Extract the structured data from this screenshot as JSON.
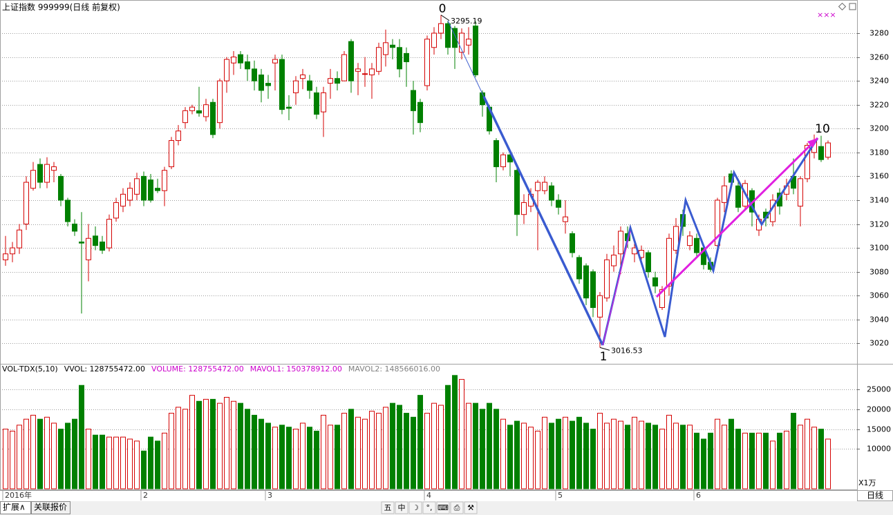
{
  "ui": {
    "header": "上证指数 999999(日线 前复权)",
    "tabs": [
      "扩展∧",
      "关联报价"
    ],
    "toolbar": [
      "五",
      "中",
      "☽",
      "°,",
      "⌨",
      "⎙",
      "⚒"
    ],
    "period": "日线",
    "unit": "X1万",
    "marks": "×××",
    "indicator": [
      {
        "text": "VOL-TDX(5,10)",
        "color": "#000000"
      },
      {
        "text": "VVOL: 128755472.00",
        "color": "#000000"
      },
      {
        "text": "VOLUME: 128755472.00",
        "color": "#cc00cc"
      },
      {
        "text": "MAVOL1: 150378912.00",
        "color": "#cc00cc"
      },
      {
        "text": "MAVOL2: 148566016.00",
        "color": "#808080"
      }
    ]
  },
  "chart_data": [
    {
      "type": "candlestick",
      "title": "上证指数 999999(日线 前复权)",
      "up_color": "#d40000",
      "down_color": "#008000",
      "categories": [
        "2016年",
        null,
        null,
        null,
        null,
        null,
        null,
        null,
        null,
        null,
        null,
        null,
        null,
        null,
        null,
        null,
        null,
        null,
        null,
        null,
        "2",
        null,
        null,
        null,
        null,
        null,
        null,
        null,
        null,
        null,
        null,
        null,
        null,
        null,
        null,
        null,
        null,
        null,
        "3",
        null,
        null,
        null,
        null,
        null,
        null,
        null,
        null,
        null,
        null,
        null,
        null,
        null,
        null,
        null,
        null,
        null,
        null,
        null,
        null,
        null,
        null,
        "4",
        null,
        null,
        null,
        null,
        null,
        null,
        null,
        null,
        null,
        null,
        null,
        null,
        null,
        null,
        null,
        null,
        null,
        null,
        "5",
        null,
        null,
        null,
        null,
        null,
        null,
        null,
        null,
        null,
        null,
        null,
        null,
        null,
        null,
        null,
        null,
        null,
        null,
        null,
        "6",
        null,
        null,
        null,
        null,
        null,
        null,
        null,
        null,
        null,
        null,
        null,
        null,
        null,
        null,
        null,
        null,
        null,
        null,
        null
      ],
      "open": [
        3090,
        3095,
        3100,
        3120,
        3150,
        3170,
        3155,
        3165,
        3160,
        3140,
        3120,
        3105,
        3090,
        3110,
        3105,
        3100,
        3125,
        3135,
        3140,
        3145,
        3160,
        3157,
        3150,
        3148,
        3168,
        3190,
        3205,
        3215,
        3215,
        3210,
        3222,
        3205,
        3240,
        3255,
        3262,
        3256,
        3250,
        3245,
        3238,
        3255,
        3258,
        3218,
        3230,
        3242,
        3240,
        3230,
        3214,
        3238,
        3242,
        3240,
        3273,
        3248,
        3246,
        3245,
        3248,
        3262,
        3270,
        3268,
        3263,
        3232,
        3222,
        3236,
        3268,
        3280,
        3288,
        3284,
        3264,
        3270,
        3286,
        3230,
        3218,
        3190,
        3168,
        3178,
        3165,
        3128,
        3135,
        3148,
        3148,
        3152,
        3140,
        3122,
        3112,
        3092,
        3085,
        3080,
        3042,
        3058,
        3085,
        3095,
        3112,
        3095,
        3092,
        3096,
        3075,
        3050,
        3068,
        3098,
        3128,
        3102,
        3108,
        3100,
        3088,
        3102,
        3138,
        3162,
        3152,
        3135,
        3148,
        3115,
        3130,
        3122,
        3146,
        3145,
        3160,
        3135,
        3158,
        3180,
        3185,
        3176
      ],
      "high": [
        3110,
        3105,
        3120,
        3160,
        3172,
        3175,
        3176,
        3172,
        3162,
        3142,
        3124,
        3130,
        3120,
        3118,
        3110,
        3128,
        3142,
        3150,
        3155,
        3163,
        3164,
        3162,
        3158,
        3168,
        3193,
        3203,
        3218,
        3220,
        3235,
        3225,
        3225,
        3242,
        3260,
        3265,
        3265,
        3262,
        3257,
        3250,
        3245,
        3262,
        3262,
        3228,
        3244,
        3250,
        3245,
        3235,
        3235,
        3250,
        3248,
        3265,
        3275,
        3255,
        3260,
        3255,
        3272,
        3283,
        3275,
        3275,
        3268,
        3240,
        3225,
        3278,
        3285,
        3295.19,
        3290,
        3286,
        3284,
        3285,
        3290,
        3232,
        3220,
        3192,
        3180,
        3180,
        3168,
        3145,
        3150,
        3157,
        3160,
        3155,
        3145,
        3140,
        3114,
        3094,
        3087,
        3082,
        3063,
        3095,
        3102,
        3118,
        3118,
        3108,
        3102,
        3098,
        3080,
        3068,
        3112,
        3125,
        3132,
        3114,
        3112,
        3103,
        3092,
        3142,
        3160,
        3165,
        3155,
        3157,
        3150,
        3128,
        3133,
        3145,
        3150,
        3158,
        3175,
        3160,
        3188,
        3195,
        3194,
        3190
      ],
      "low": [
        3085,
        3088,
        3095,
        3115,
        3148,
        3150,
        3150,
        3155,
        3135,
        3118,
        3110,
        3045,
        3072,
        3098,
        3095,
        3097,
        3122,
        3130,
        3135,
        3140,
        3135,
        3138,
        3146,
        3135,
        3166,
        3186,
        3200,
        3212,
        3210,
        3206,
        3192,
        3200,
        3230,
        3245,
        3250,
        3240,
        3232,
        3222,
        3225,
        3232,
        3212,
        3207,
        3220,
        3233,
        3225,
        3208,
        3193,
        3225,
        3232,
        3240,
        3230,
        3228,
        3235,
        3225,
        3245,
        3252,
        3258,
        3243,
        3235,
        3195,
        3197,
        3232,
        3262,
        3275,
        3262,
        3250,
        3258,
        3262,
        3243,
        3210,
        3195,
        3155,
        3165,
        3160,
        3110,
        3120,
        3130,
        3098,
        3145,
        3135,
        3128,
        3112,
        3092,
        3070,
        3052,
        3042,
        3016.53,
        3055,
        3080,
        3078,
        3100,
        3088,
        3090,
        3075,
        3062,
        3048,
        3060,
        3095,
        3110,
        3098,
        3092,
        3082,
        3080,
        3098,
        3130,
        3150,
        3130,
        3132,
        3118,
        3110,
        3118,
        3118,
        3128,
        3140,
        3145,
        3118,
        3155,
        3175,
        3172,
        3174
      ],
      "close": [
        3095,
        3100,
        3115,
        3155,
        3165,
        3155,
        3170,
        3168,
        3140,
        3122,
        3114,
        3104,
        3108,
        3102,
        3098,
        3124,
        3138,
        3145,
        3150,
        3158,
        3140,
        3140,
        3148,
        3165,
        3190,
        3198,
        3215,
        3218,
        3213,
        3220,
        3195,
        3240,
        3258,
        3260,
        3255,
        3250,
        3240,
        3232,
        3236,
        3258,
        3216,
        3217,
        3240,
        3245,
        3232,
        3212,
        3230,
        3242,
        3238,
        3262,
        3240,
        3250,
        3246,
        3250,
        3268,
        3272,
        3268,
        3250,
        3256,
        3215,
        3205,
        3275,
        3280,
        3288,
        3268,
        3268,
        3280,
        3275,
        3245,
        3220,
        3198,
        3168,
        3178,
        3172,
        3128,
        3138,
        3145,
        3155,
        3155,
        3140,
        3134,
        3126,
        3096,
        3074,
        3058,
        3050,
        3060,
        3090,
        3094,
        3114,
        3106,
        3100,
        3098,
        3080,
        3068,
        3065,
        3108,
        3118,
        3118,
        3110,
        3096,
        3086,
        3082,
        3140,
        3152,
        3155,
        3134,
        3154,
        3130,
        3124,
        3125,
        3140,
        3135,
        3152,
        3150,
        3158,
        3186,
        3190,
        3174,
        3188
      ],
      "ylim": [
        3004,
        3302
      ],
      "yticks": [
        3020,
        3040,
        3060,
        3080,
        3100,
        3120,
        3140,
        3160,
        3180,
        3200,
        3220,
        3240,
        3260,
        3280
      ],
      "grid": true,
      "annotations": [
        "0",
        "1",
        "10"
      ]
    },
    {
      "type": "volume",
      "values": [
        15000,
        14500,
        16000,
        17500,
        18500,
        17500,
        18000,
        16500,
        15000,
        16500,
        17500,
        26000,
        15000,
        13500,
        13500,
        13000,
        13000,
        13000,
        12500,
        12000,
        9500,
        13000,
        12000,
        14000,
        19000,
        20500,
        20000,
        23500,
        22000,
        22500,
        22500,
        21500,
        23000,
        22000,
        21500,
        20000,
        18500,
        17500,
        16500,
        15500,
        16000,
        15500,
        15000,
        16500,
        15500,
        14500,
        18500,
        16000,
        16000,
        19000,
        20000,
        18000,
        17500,
        19500,
        19000,
        20500,
        21500,
        21000,
        19000,
        18000,
        23500,
        19000,
        21500,
        21000,
        26000,
        28500,
        27500,
        21500,
        21500,
        20000,
        21500,
        20000,
        17500,
        16000,
        17000,
        16500,
        15500,
        14500,
        18000,
        16500,
        17500,
        18000,
        17000,
        18000,
        16500,
        15000,
        19000,
        16500,
        17500,
        17000,
        16000,
        18000,
        17000,
        16500,
        16000,
        15000,
        18500,
        16500,
        16000,
        16000,
        14000,
        12500,
        14000,
        17500,
        16000,
        17500,
        15000,
        14000,
        14000,
        14000,
        14000,
        12000,
        14000,
        14500,
        19000,
        16000,
        17500,
        15500,
        15000,
        12500
      ],
      "ylim": [
        0,
        30900
      ],
      "yticks": [
        10000,
        15000,
        20000,
        25000
      ],
      "grid": true
    }
  ]
}
